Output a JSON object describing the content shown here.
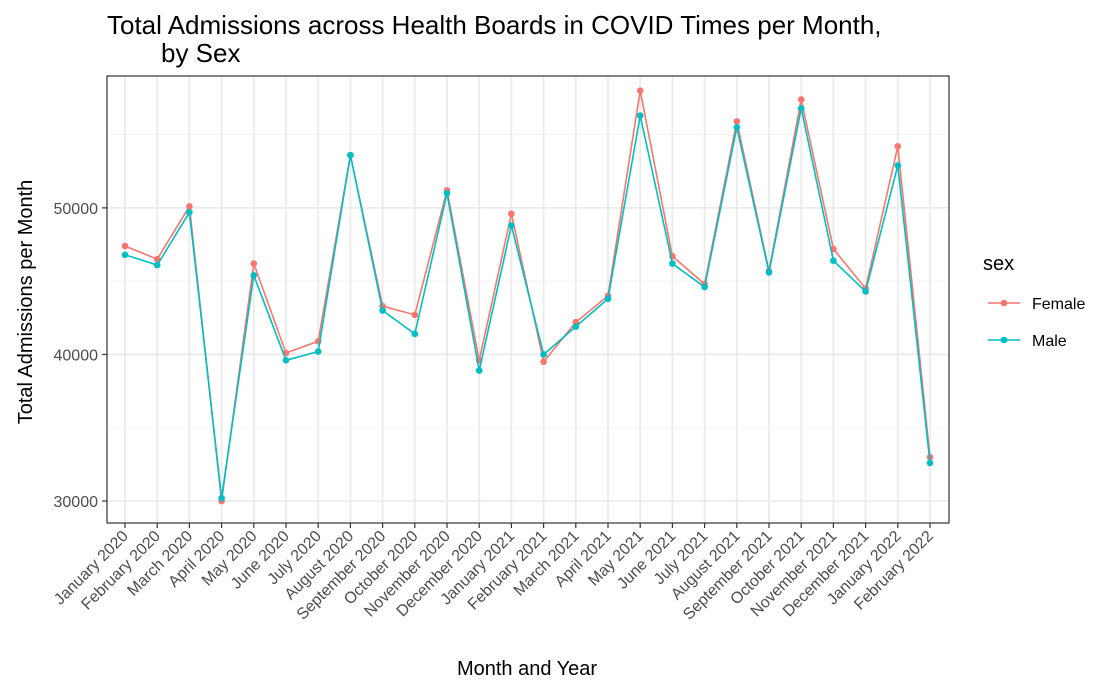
{
  "chart_data": {
    "type": "line",
    "title": "Total Admissions across Health Boards in COVID Times per Month,",
    "title_line2": "by Sex",
    "xlabel": "Month and Year",
    "ylabel": "Total Admissions per Month",
    "ylim": [
      28500,
      59000
    ],
    "yticks": [
      30000,
      40000,
      50000
    ],
    "ytick_labels": [
      "30000",
      "40000",
      "50000"
    ],
    "grid": true,
    "legend": {
      "title": "sex",
      "position": "right"
    },
    "categories": [
      "January 2020",
      "February 2020",
      "March 2020",
      "April 2020",
      "May 2020",
      "June 2020",
      "July 2020",
      "August 2020",
      "September 2020",
      "October 2020",
      "November 2020",
      "December 2020",
      "January 2021",
      "February 2021",
      "March 2021",
      "April 2021",
      "May 2021",
      "June 2021",
      "July 2021",
      "August 2021",
      "September 2021",
      "October 2021",
      "November 2021",
      "December 2021",
      "January 2022",
      "February 2022"
    ],
    "series": [
      {
        "name": "Female",
        "color": "#F8766D",
        "values": [
          47400,
          46500,
          50100,
          30000,
          46200,
          40100,
          40900,
          53600,
          43300,
          42700,
          51200,
          39600,
          49600,
          39500,
          42200,
          44000,
          58000,
          46700,
          44800,
          55900,
          45700,
          57400,
          47200,
          44500,
          54200,
          33000
        ]
      },
      {
        "name": "Male",
        "color": "#00BFC4",
        "values": [
          46800,
          46100,
          49700,
          30200,
          45400,
          39600,
          40200,
          53600,
          43000,
          41400,
          51000,
          38900,
          48800,
          40000,
          41900,
          43800,
          56300,
          46200,
          44600,
          55500,
          45600,
          56800,
          46400,
          44300,
          52900,
          32600
        ]
      }
    ]
  }
}
